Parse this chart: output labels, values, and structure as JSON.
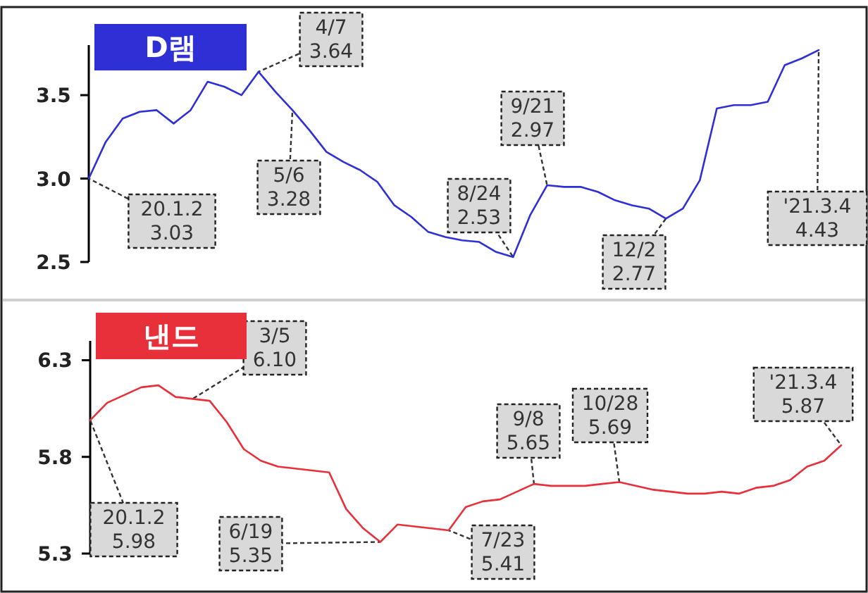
{
  "chart_data": [
    {
      "type": "line",
      "title": "D램",
      "tick_labels": "y",
      "ylim": [
        2.5,
        3.8
      ],
      "yticks": [
        2.5,
        {
          "value": 3,
          "label": "3.0"
        },
        3.5
      ],
      "categories": [
        null,
        null,
        null,
        null,
        null,
        null,
        null,
        null,
        null,
        null,
        null,
        null,
        null,
        null,
        null,
        null,
        null,
        null,
        null,
        null,
        null,
        null,
        null,
        null,
        null,
        null,
        null,
        null,
        null,
        null,
        null,
        null,
        null,
        null,
        null,
        null,
        null,
        null,
        null,
        null,
        null,
        null,
        null,
        null
      ],
      "series": [
        {
          "color": "#2f2fd6",
          "values": [
            3.0,
            3.22,
            3.36,
            3.4,
            3.41,
            3.33,
            3.41,
            3.58,
            3.55,
            3.5,
            3.64,
            3.52,
            3.41,
            3.29,
            3.16,
            3.1,
            3.05,
            2.98,
            2.84,
            2.77,
            2.68,
            2.65,
            2.63,
            2.62,
            2.56,
            2.53,
            2.78,
            2.96,
            2.95,
            2.95,
            2.92,
            2.87,
            2.84,
            2.82,
            2.76,
            2.82,
            2.99,
            3.42,
            3.44,
            3.44,
            3.46,
            3.68,
            3.72,
            3.77
          ]
        }
      ],
      "annotations": [
        "20.1.2 3.03",
        "4/7 3.64",
        "5/6 3.28",
        "8/24 2.53",
        "9/21 2.97",
        "12/2 2.77",
        "'21.3.4 4.43"
      ]
    },
    {
      "type": "line",
      "title": "낸드",
      "tick_labels": "y",
      "ylim": [
        5.3,
        6.4
      ],
      "yticks": [
        5.3,
        5.8,
        6.3
      ],
      "categories": [
        null,
        null,
        null,
        null,
        null,
        null,
        null,
        null,
        null,
        null,
        null,
        null,
        null,
        null,
        null,
        null,
        null,
        null,
        null,
        null,
        null,
        null,
        null,
        null,
        null,
        null,
        null,
        null,
        null,
        null,
        null,
        null,
        null,
        null,
        null,
        null,
        null,
        null,
        null,
        null,
        null,
        null,
        null,
        null,
        null
      ],
      "series": [
        {
          "color": "#e8303a",
          "values": [
            5.99,
            6.08,
            6.12,
            6.16,
            6.17,
            6.11,
            6.1,
            6.09,
            5.98,
            5.84,
            5.78,
            5.75,
            5.74,
            5.73,
            5.72,
            5.53,
            5.43,
            5.36,
            5.45,
            5.44,
            5.43,
            5.42,
            5.54,
            5.57,
            5.58,
            5.62,
            5.66,
            5.65,
            5.65,
            5.65,
            5.66,
            5.67,
            5.65,
            5.63,
            5.62,
            5.61,
            5.61,
            5.62,
            5.61,
            5.64,
            5.65,
            5.68,
            5.75,
            5.78,
            5.86
          ]
        }
      ],
      "annotations": [
        "20.1.2 5.98",
        "3/5 6.10",
        "6/19 5.35",
        "7/23 5.41",
        "9/8 5.65",
        "10/28 5.69",
        "'21.3.4 5.87"
      ]
    }
  ]
}
